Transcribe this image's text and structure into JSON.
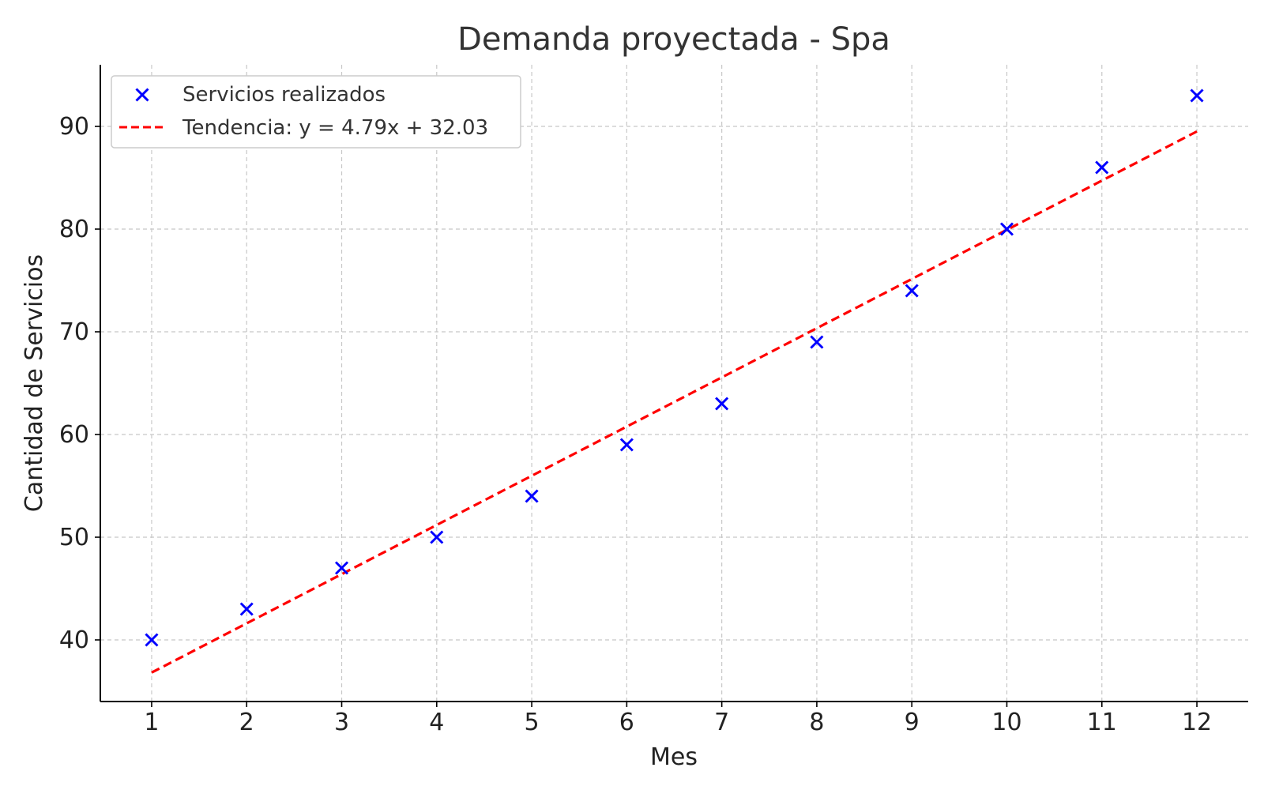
{
  "chart_data": {
    "type": "scatter",
    "title": "Demanda proyectada - Spa",
    "xlabel": "Mes",
    "ylabel": "Cantidad de Servicios",
    "xlim": [
      0.46,
      12.54
    ],
    "ylim": [
      34,
      96
    ],
    "xticks": [
      1,
      2,
      3,
      4,
      5,
      6,
      7,
      8,
      9,
      10,
      11,
      12
    ],
    "yticks": [
      40,
      50,
      60,
      70,
      80,
      90
    ],
    "grid": true,
    "legend_position": "top-left",
    "series": [
      {
        "name": "Servicios realizados",
        "kind": "scatter",
        "marker": "x",
        "color": "#0000ff",
        "x": [
          1,
          2,
          3,
          4,
          5,
          6,
          7,
          8,
          9,
          10,
          11,
          12
        ],
        "y": [
          40,
          43,
          47,
          50,
          54,
          59,
          63,
          69,
          74,
          80,
          86,
          93
        ]
      },
      {
        "name": "Tendencia: y = 4.79x + 32.03",
        "kind": "line",
        "style": "dashed",
        "color": "#ff0000",
        "slope": 4.79,
        "intercept": 32.03,
        "x_range": [
          1,
          12
        ]
      }
    ]
  }
}
